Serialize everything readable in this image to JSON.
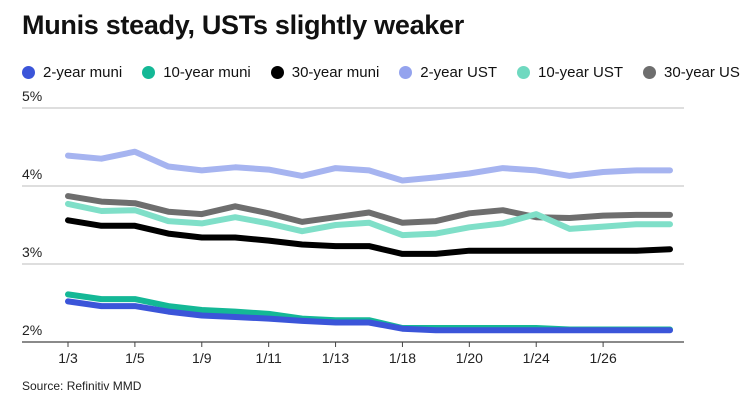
{
  "chart_data": {
    "type": "line",
    "title": "Munis steady, USTs slightly weaker",
    "source": "Source: Refinitiv MMD",
    "ylim": [
      2,
      5
    ],
    "y_ticks": [
      5,
      4,
      3,
      2
    ],
    "y_tick_labels": [
      "5%",
      "4%",
      "3%",
      "2%"
    ],
    "x_ticks": [
      0,
      2,
      4,
      6,
      8,
      10,
      12,
      14,
      16
    ],
    "x_tick_labels": [
      "1/3",
      "1/5",
      "1/9",
      "1/11",
      "1/13",
      "1/18",
      "1/20",
      "1/24",
      "1/26"
    ],
    "x_count": 19,
    "grid": "horizontal",
    "legend_position": "top",
    "series": [
      {
        "name": "2-year muni",
        "color": "#3b55d9",
        "legend_color": "#3b55d9",
        "values": [
          2.52,
          2.46,
          2.46,
          2.39,
          2.34,
          2.32,
          2.3,
          2.27,
          2.25,
          2.25,
          2.17,
          2.15,
          2.15,
          2.15,
          2.15,
          2.15,
          2.15,
          2.15,
          2.15
        ]
      },
      {
        "name": "10-year muni",
        "color": "#14b896",
        "legend_color": "#14b896",
        "values": [
          2.61,
          2.55,
          2.55,
          2.46,
          2.41,
          2.39,
          2.36,
          2.3,
          2.28,
          2.28,
          2.18,
          2.18,
          2.18,
          2.18,
          2.18,
          2.16,
          2.16,
          2.16,
          2.16
        ]
      },
      {
        "name": "30-year muni",
        "color": "#000000",
        "legend_color": "#000000",
        "values": [
          3.56,
          3.49,
          3.49,
          3.39,
          3.34,
          3.34,
          3.3,
          3.25,
          3.23,
          3.23,
          3.13,
          3.13,
          3.17,
          3.17,
          3.17,
          3.17,
          3.17,
          3.17,
          3.19
        ]
      },
      {
        "name": "2-year UST",
        "color": "#a6b4f0",
        "legend_color": "#94a3ee",
        "values": [
          4.39,
          4.35,
          4.44,
          4.25,
          4.2,
          4.24,
          4.21,
          4.13,
          4.23,
          4.2,
          4.07,
          4.11,
          4.16,
          4.23,
          4.2,
          4.13,
          4.18,
          4.2,
          4.2
        ]
      },
      {
        "name": "10-year UST",
        "color": "#7fdfc8",
        "legend_color": "#6fd9c0",
        "values": [
          3.77,
          3.68,
          3.69,
          3.55,
          3.52,
          3.6,
          3.52,
          3.42,
          3.5,
          3.53,
          3.37,
          3.39,
          3.47,
          3.52,
          3.64,
          3.45,
          3.48,
          3.51,
          3.51
        ]
      },
      {
        "name": "30-year UST",
        "color": "#6e6e6e",
        "legend_color": "#6e6e6e",
        "values": [
          3.87,
          3.8,
          3.78,
          3.67,
          3.64,
          3.74,
          3.65,
          3.54,
          3.6,
          3.66,
          3.53,
          3.55,
          3.65,
          3.69,
          3.6,
          3.59,
          3.62,
          3.63,
          3.63
        ]
      }
    ]
  }
}
